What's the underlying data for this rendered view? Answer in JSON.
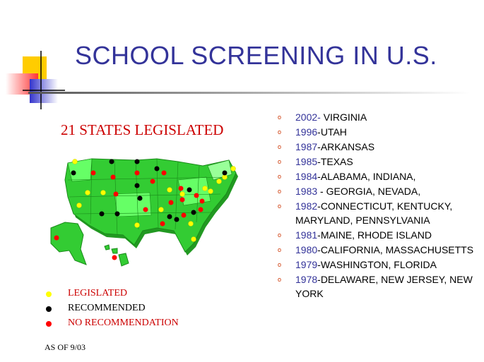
{
  "title": "SCHOOL SCREENING IN U.S.",
  "subtitle": "21 STATES LEGISLATED",
  "legend": [
    {
      "label": "LEGISLATED",
      "dot_color": "#ffff00",
      "label_color": "#cc0000"
    },
    {
      "label": "RECOMMENDED",
      "dot_color": "#000000",
      "label_color": "#000000"
    },
    {
      "label": "NO RECOMMENDATION",
      "dot_color": "#ff0000",
      "label_color": "#cc0000"
    }
  ],
  "as_of": "AS OF 9/03",
  "bullet_glyph": "o",
  "timeline": [
    {
      "year": "2002-",
      "states": " VIRGINIA"
    },
    {
      "year": "1996",
      "states": "-UTAH"
    },
    {
      "year": "1987",
      "states": "-ARKANSAS"
    },
    {
      "year": "1985",
      "states": "-TEXAS"
    },
    {
      "year": "1984",
      "states": "-ALABAMA, INDIANA,"
    },
    {
      "year": "1983",
      "states": " - GEORGIA, NEVADA,"
    },
    {
      "year": "1982",
      "states": "-CONNECTICUT, KENTUCKY, MARYLAND, PENNSYLVANIA"
    },
    {
      "year": "1981",
      "states": "-MAINE, RHODE ISLAND"
    },
    {
      "year": "1980",
      "states": "-CALIFORNIA, MASSACHUSETTS"
    },
    {
      "year": "1979",
      "states": "-WASHINGTON, FLORIDA"
    },
    {
      "year": "1978",
      "states": "-DELAWARE, NEW JERSEY, NEW YORK"
    }
  ],
  "colors": {
    "title": "#333399",
    "accent_red": "#cc0000",
    "map_green": "#33cc33",
    "map_light": "#66ff66",
    "deco_yellow": "#ffcc00",
    "deco_blue": "#3333cc"
  }
}
